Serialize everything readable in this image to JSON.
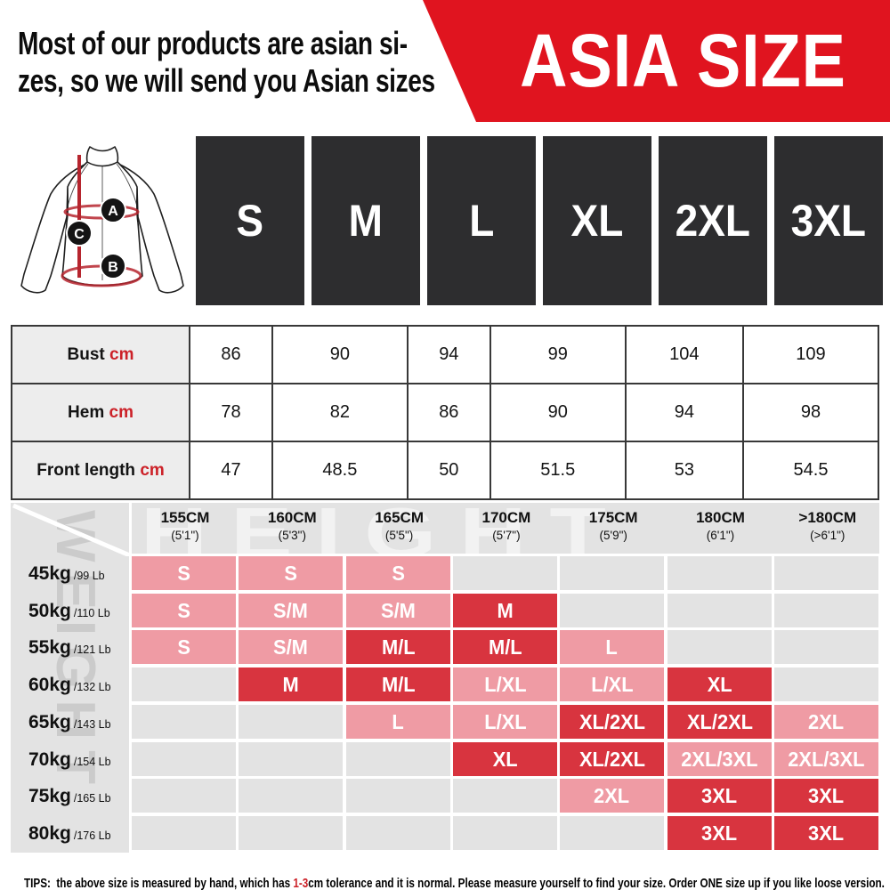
{
  "header": {
    "note_line1": "Most of our products are asian si-",
    "note_line2": "zes, so we will send you Asian sizes",
    "banner_label": "ASIA SIZE"
  },
  "diagram": {
    "point_a": "A",
    "point_b": "B",
    "point_c": "C"
  },
  "sizes": [
    "S",
    "M",
    "L",
    "XL",
    "2XL",
    "3XL"
  ],
  "measure_table": {
    "rows": [
      {
        "label": "Bust",
        "unit": "cm",
        "values": [
          "86",
          "90",
          "94",
          "99",
          "104",
          "109"
        ]
      },
      {
        "label": "Hem",
        "unit": "cm",
        "values": [
          "78",
          "82",
          "86",
          "90",
          "94",
          "98"
        ]
      },
      {
        "label": "Front length",
        "unit": "cm",
        "values": [
          "47",
          "48.5",
          "50",
          "51.5",
          "53",
          "54.5"
        ]
      }
    ]
  },
  "matrix": {
    "watermark_height": "HEIGHT",
    "watermark_weight": "WEIGHT",
    "columns": [
      {
        "cm": "155CM",
        "ft": "(5'1\")"
      },
      {
        "cm": "160CM",
        "ft": "(5'3\")"
      },
      {
        "cm": "165CM",
        "ft": "(5'5\")"
      },
      {
        "cm": "170CM",
        "ft": "(5'7\")"
      },
      {
        "cm": "175CM",
        "ft": "(5'9\")"
      },
      {
        "cm": "180CM",
        "ft": "(6'1\")"
      },
      {
        "cm": ">180CM",
        "ft": "(>6'1\")"
      }
    ],
    "rows": [
      {
        "kg": "45kg",
        "lb": "/99 Lb",
        "cells": [
          {
            "t": "S",
            "tone": "pink"
          },
          {
            "t": "S",
            "tone": "pink"
          },
          {
            "t": "S",
            "tone": "pink"
          },
          null,
          null,
          null,
          null
        ]
      },
      {
        "kg": "50kg",
        "lb": "/110 Lb",
        "cells": [
          {
            "t": "S",
            "tone": "pink"
          },
          {
            "t": "S/M",
            "tone": "pink"
          },
          {
            "t": "S/M",
            "tone": "pink"
          },
          {
            "t": "M",
            "tone": "red"
          },
          null,
          null,
          null
        ]
      },
      {
        "kg": "55kg",
        "lb": "/121 Lb",
        "cells": [
          {
            "t": "S",
            "tone": "pink"
          },
          {
            "t": "S/M",
            "tone": "pink"
          },
          {
            "t": "M/L",
            "tone": "red"
          },
          {
            "t": "M/L",
            "tone": "red"
          },
          {
            "t": "L",
            "tone": "pink"
          },
          null,
          null
        ]
      },
      {
        "kg": "60kg",
        "lb": "/132 Lb",
        "cells": [
          null,
          {
            "t": "M",
            "tone": "red"
          },
          {
            "t": "M/L",
            "tone": "red"
          },
          {
            "t": "L/XL",
            "tone": "pink"
          },
          {
            "t": "L/XL",
            "tone": "pink"
          },
          {
            "t": "XL",
            "tone": "red"
          },
          null
        ]
      },
      {
        "kg": "65kg",
        "lb": "/143 Lb",
        "cells": [
          null,
          null,
          {
            "t": "L",
            "tone": "pink"
          },
          {
            "t": "L/XL",
            "tone": "pink"
          },
          {
            "t": "XL/2XL",
            "tone": "red"
          },
          {
            "t": "XL/2XL",
            "tone": "red"
          },
          {
            "t": "2XL",
            "tone": "pink"
          }
        ]
      },
      {
        "kg": "70kg",
        "lb": "/154 Lb",
        "cells": [
          null,
          null,
          null,
          {
            "t": "XL",
            "tone": "red"
          },
          {
            "t": "XL/2XL",
            "tone": "red"
          },
          {
            "t": "2XL/3XL",
            "tone": "pink"
          },
          {
            "t": "2XL/3XL",
            "tone": "pink"
          }
        ]
      },
      {
        "kg": "75kg",
        "lb": "/165 Lb",
        "cells": [
          null,
          null,
          null,
          null,
          {
            "t": "2XL",
            "tone": "pink"
          },
          {
            "t": "3XL",
            "tone": "red"
          },
          {
            "t": "3XL",
            "tone": "red"
          }
        ]
      },
      {
        "kg": "80kg",
        "lb": "/176 Lb",
        "cells": [
          null,
          null,
          null,
          null,
          null,
          {
            "t": "3XL",
            "tone": "red"
          },
          {
            "t": "3XL",
            "tone": "red"
          }
        ]
      }
    ]
  },
  "tips": {
    "prefix": "TIPS:  the above size is measured by hand, which has ",
    "highlight": "1-3",
    "suffix": "cm tolerance and it is normal. Please measure yourself to find your size. Order ONE size up if you like loose version."
  },
  "colors": {
    "banner_red": "#e0141f",
    "cell_red": "#d8343f",
    "cell_pink": "#ef9ba4",
    "cell_empty": "#e3e3e3",
    "matrix_gray": "#e3e3e3",
    "box_dark": "#2d2d2f",
    "table_label_gray": "#ededed",
    "accent_red_text": "#cc2128"
  },
  "chart_data": [
    {
      "type": "table",
      "title": "Garment measurements by size (cm)",
      "columns": [
        "S",
        "M",
        "L",
        "XL",
        "2XL",
        "3XL"
      ],
      "rows": [
        {
          "label": "Bust cm",
          "values": [
            86,
            90,
            94,
            99,
            104,
            109
          ]
        },
        {
          "label": "Hem cm",
          "values": [
            78,
            82,
            86,
            90,
            94,
            98
          ]
        },
        {
          "label": "Front length cm",
          "values": [
            47,
            48.5,
            50,
            51.5,
            53,
            54.5
          ]
        }
      ]
    },
    {
      "type": "heatmap",
      "title": "Recommended size by height (columns) and weight (rows)",
      "x_labels": [
        "155CM (5'1\")",
        "160CM (5'3\")",
        "165CM (5'5\")",
        "170CM (5'7\")",
        "175CM (5'9\")",
        "180CM (6'1\")",
        ">180CM (>6'1\")"
      ],
      "y_labels": [
        "45kg /99 Lb",
        "50kg /110 Lb",
        "55kg /121 Lb",
        "60kg /132 Lb",
        "65kg /143 Lb",
        "70kg /154 Lb",
        "75kg /165 Lb",
        "80kg /176 Lb"
      ],
      "cells": [
        [
          "S",
          "S",
          "S",
          "",
          "",
          "",
          ""
        ],
        [
          "S",
          "S/M",
          "S/M",
          "M",
          "",
          "",
          ""
        ],
        [
          "S",
          "S/M",
          "M/L",
          "M/L",
          "L",
          "",
          ""
        ],
        [
          "",
          "M",
          "M/L",
          "L/XL",
          "L/XL",
          "XL",
          ""
        ],
        [
          "",
          "",
          "L",
          "L/XL",
          "XL/2XL",
          "XL/2XL",
          "2XL"
        ],
        [
          "",
          "",
          "",
          "XL",
          "XL/2XL",
          "2XL/3XL",
          "2XL/3XL"
        ],
        [
          "",
          "",
          "",
          "",
          "2XL",
          "3XL",
          "3XL"
        ],
        [
          "",
          "",
          "",
          "",
          "",
          "3XL",
          "3XL"
        ]
      ]
    }
  ]
}
